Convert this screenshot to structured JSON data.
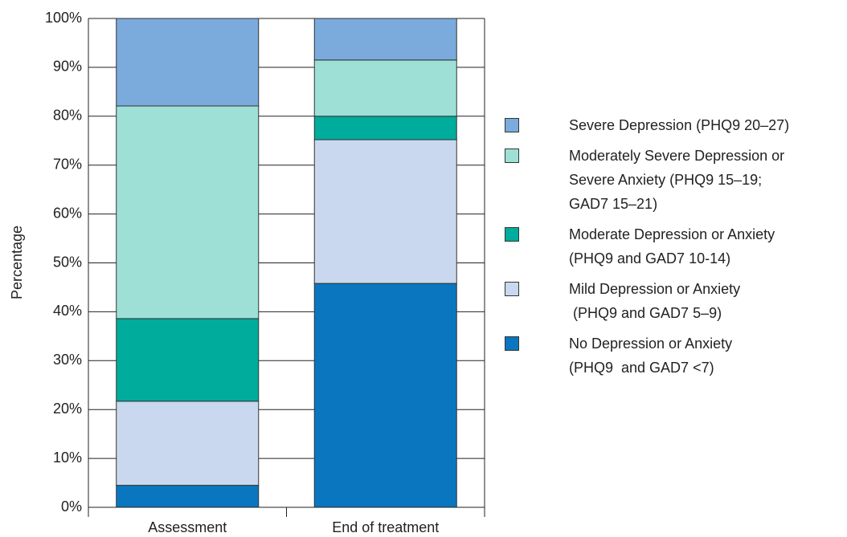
{
  "chart_data": {
    "type": "stacked_bar",
    "y_label": "Percentage",
    "categories": [
      "Assessment",
      "End of treatment"
    ],
    "series": [
      {
        "name": "No Depression or Anxiety\n(PHQ9  and GAD7 <7)",
        "color": "#0a76bf",
        "values": [
          4.5,
          45.8
        ]
      },
      {
        "name": "Mild Depression or Anxiety\n (PHQ9 and GAD7 5–9)",
        "color": "#c9d8ef",
        "values": [
          17.2,
          29.4
        ]
      },
      {
        "name": "Moderate Depression or Anxiety\n(PHQ9 and GAD7 10-14)",
        "color": "#00ac9c",
        "values": [
          16.9,
          4.8
        ]
      },
      {
        "name": "Moderately Severe Depression or\nSevere Anxiety (PHQ9 15–19;\nGAD7 15–21)",
        "color": "#9ee0d6",
        "values": [
          43.5,
          11.5
        ]
      },
      {
        "name": "Severe Depression (PHQ9 20–27)",
        "color": "#7aabdc",
        "values": [
          17.9,
          8.5
        ]
      }
    ],
    "ylim": [
      0,
      100
    ],
    "yticks": [
      {
        "value": 0,
        "label": "0%"
      },
      {
        "value": 10,
        "label": "10%"
      },
      {
        "value": 20,
        "label": "20%"
      },
      {
        "value": 30,
        "label": "30%"
      },
      {
        "value": 40,
        "label": "40%"
      },
      {
        "value": 50,
        "label": "50%"
      },
      {
        "value": 60,
        "label": "60%"
      },
      {
        "value": 70,
        "label": "70%"
      },
      {
        "value": 80,
        "label": "80%"
      },
      {
        "value": 90,
        "label": "90%"
      },
      {
        "value": 100,
        "label": "100%"
      }
    ],
    "grid": true,
    "legend": "right"
  }
}
